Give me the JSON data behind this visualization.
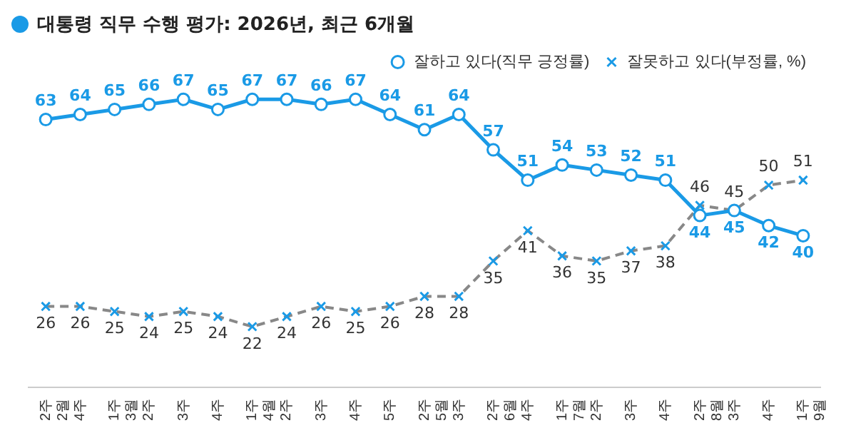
{
  "chart_data": {
    "type": "line",
    "title": "대통령 직무 수행 평가: 2026년, 최근 6개월",
    "categories": [
      "2주 2월",
      "4주",
      "1주 3월",
      "2주",
      "3주",
      "4주",
      "1주 4월",
      "2주",
      "3주",
      "4주",
      "5주",
      "2주 5월",
      "3주",
      "2주 6월",
      "4주",
      "1주 7월",
      "2주",
      "3주",
      "4주",
      "2주 8월",
      "3주",
      "4주",
      "1주 9월"
    ],
    "series": [
      {
        "name": "잘하고 있다(직무 긍정률)",
        "color": "#1a9ae6",
        "marker": "circle",
        "line_style": "solid",
        "values": [
          63,
          64,
          65,
          66,
          67,
          65,
          67,
          67,
          66,
          67,
          64,
          61,
          64,
          57,
          51,
          54,
          53,
          52,
          51,
          44,
          45,
          42,
          40
        ]
      },
      {
        "name": "잘못하고 있다(부정률, %)",
        "color": "#888888",
        "marker": "cross",
        "line_style": "dashed",
        "values": [
          26,
          26,
          25,
          24,
          25,
          24,
          22,
          24,
          26,
          25,
          26,
          28,
          28,
          35,
          41,
          36,
          35,
          37,
          38,
          46,
          45,
          50,
          51
        ]
      }
    ],
    "data_labels": true,
    "tick_labels": "x",
    "legend": "top right",
    "grid": false
  }
}
